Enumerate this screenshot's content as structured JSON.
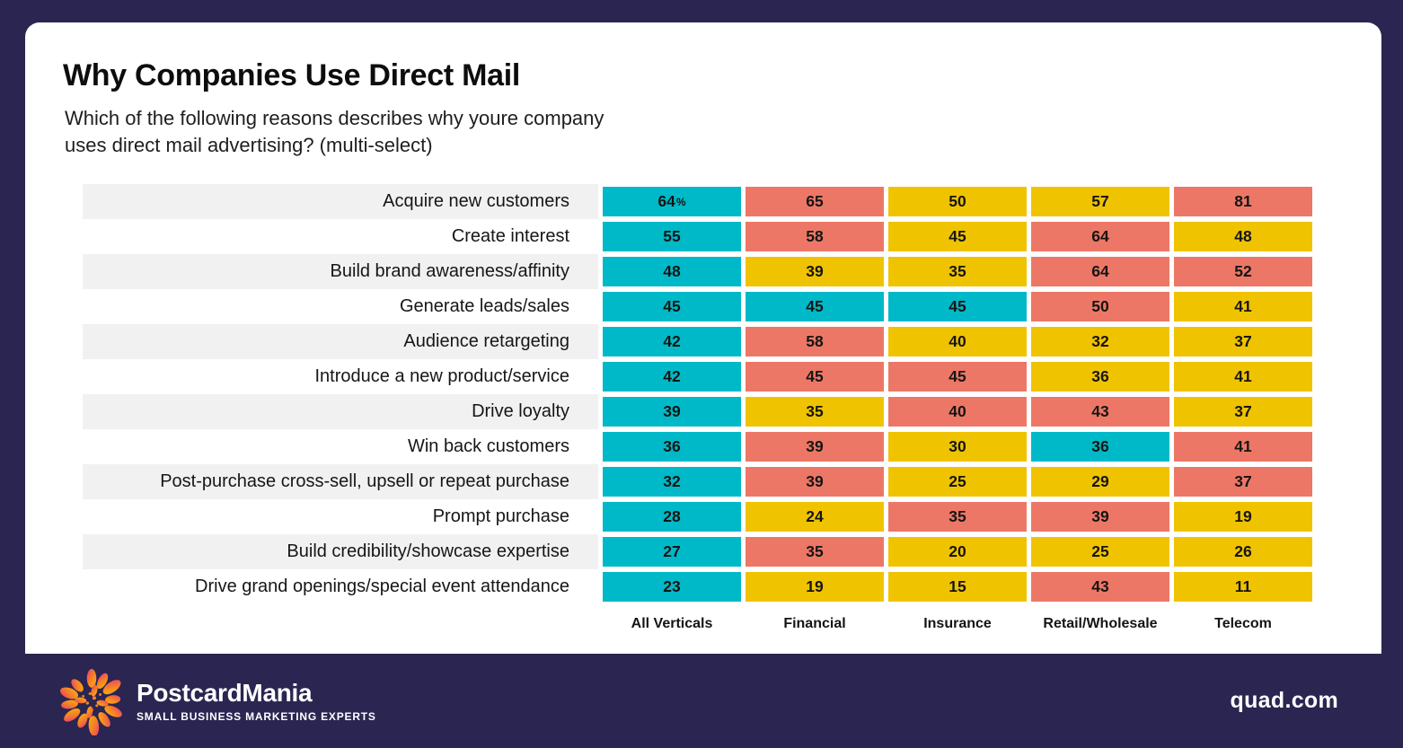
{
  "header": {
    "title": "Why Companies Use Direct Mail",
    "subtitle": "Which of the following reasons describes why youre company\nuses direct mail advertising? (multi-select)"
  },
  "colors": {
    "teal": "#00B9C8",
    "coral": "#ED7766",
    "gold": "#F0C300",
    "stripe": "#F1F1F2",
    "navy": "#2A2551"
  },
  "chart_data": {
    "type": "heatmap",
    "title": "Why Companies Use Direct Mail",
    "subtitle": "Which of the following reasons describes why youre company uses direct mail advertising? (multi-select)",
    "value_unit": "%",
    "columns": [
      "All Verticals",
      "Financial",
      "Insurance",
      "Retail/Wholesale",
      "Telecom"
    ],
    "rows": [
      {
        "label": "Acquire new customers",
        "cells": [
          {
            "v": 64,
            "suffix": "%",
            "color": "teal"
          },
          {
            "v": 65,
            "color": "coral"
          },
          {
            "v": 50,
            "color": "gold"
          },
          {
            "v": 57,
            "color": "gold"
          },
          {
            "v": 81,
            "color": "coral"
          }
        ]
      },
      {
        "label": "Create interest",
        "cells": [
          {
            "v": 55,
            "color": "teal"
          },
          {
            "v": 58,
            "color": "coral"
          },
          {
            "v": 45,
            "color": "gold"
          },
          {
            "v": 64,
            "color": "coral"
          },
          {
            "v": 48,
            "color": "gold"
          }
        ]
      },
      {
        "label": "Build brand awareness/affinity",
        "cells": [
          {
            "v": 48,
            "color": "teal"
          },
          {
            "v": 39,
            "color": "gold"
          },
          {
            "v": 35,
            "color": "gold"
          },
          {
            "v": 64,
            "color": "coral"
          },
          {
            "v": 52,
            "color": "coral"
          }
        ]
      },
      {
        "label": "Generate leads/sales",
        "cells": [
          {
            "v": 45,
            "color": "teal"
          },
          {
            "v": 45,
            "color": "teal"
          },
          {
            "v": 45,
            "color": "teal"
          },
          {
            "v": 50,
            "color": "coral"
          },
          {
            "v": 41,
            "color": "gold"
          }
        ]
      },
      {
        "label": "Audience retargeting",
        "cells": [
          {
            "v": 42,
            "color": "teal"
          },
          {
            "v": 58,
            "color": "coral"
          },
          {
            "v": 40,
            "color": "gold"
          },
          {
            "v": 32,
            "color": "gold"
          },
          {
            "v": 37,
            "color": "gold"
          }
        ]
      },
      {
        "label": "Introduce a new product/service",
        "cells": [
          {
            "v": 42,
            "color": "teal"
          },
          {
            "v": 45,
            "color": "coral"
          },
          {
            "v": 45,
            "color": "coral"
          },
          {
            "v": 36,
            "color": "gold"
          },
          {
            "v": 41,
            "color": "gold"
          }
        ]
      },
      {
        "label": "Drive loyalty",
        "cells": [
          {
            "v": 39,
            "color": "teal"
          },
          {
            "v": 35,
            "color": "gold"
          },
          {
            "v": 40,
            "color": "coral"
          },
          {
            "v": 43,
            "color": "coral"
          },
          {
            "v": 37,
            "color": "gold"
          }
        ]
      },
      {
        "label": "Win back customers",
        "cells": [
          {
            "v": 36,
            "color": "teal"
          },
          {
            "v": 39,
            "color": "coral"
          },
          {
            "v": 30,
            "color": "gold"
          },
          {
            "v": 36,
            "color": "teal"
          },
          {
            "v": 41,
            "color": "coral"
          }
        ]
      },
      {
        "label": "Post-purchase cross-sell, upsell or repeat purchase",
        "cells": [
          {
            "v": 32,
            "color": "teal"
          },
          {
            "v": 39,
            "color": "coral"
          },
          {
            "v": 25,
            "color": "gold"
          },
          {
            "v": 29,
            "color": "gold"
          },
          {
            "v": 37,
            "color": "coral"
          }
        ]
      },
      {
        "label": "Prompt purchase",
        "cells": [
          {
            "v": 28,
            "color": "teal"
          },
          {
            "v": 24,
            "color": "gold"
          },
          {
            "v": 35,
            "color": "coral"
          },
          {
            "v": 39,
            "color": "coral"
          },
          {
            "v": 19,
            "color": "gold"
          }
        ]
      },
      {
        "label": "Build credibility/showcase expertise",
        "cells": [
          {
            "v": 27,
            "color": "teal"
          },
          {
            "v": 35,
            "color": "coral"
          },
          {
            "v": 20,
            "color": "gold"
          },
          {
            "v": 25,
            "color": "gold"
          },
          {
            "v": 26,
            "color": "gold"
          }
        ]
      },
      {
        "label": "Drive grand openings/special event attendance",
        "cells": [
          {
            "v": 23,
            "color": "teal"
          },
          {
            "v": 19,
            "color": "gold"
          },
          {
            "v": 15,
            "color": "gold"
          },
          {
            "v": 43,
            "color": "coral"
          },
          {
            "v": 11,
            "color": "gold"
          }
        ]
      }
    ],
    "legend_position": "none",
    "grid": false
  },
  "footer": {
    "brand": "PostcardMania",
    "tagline": "SMALL BUSINESS MARKETING EXPERTS",
    "site": "quad.com",
    "logo_icon": "flower-burst-icon"
  }
}
